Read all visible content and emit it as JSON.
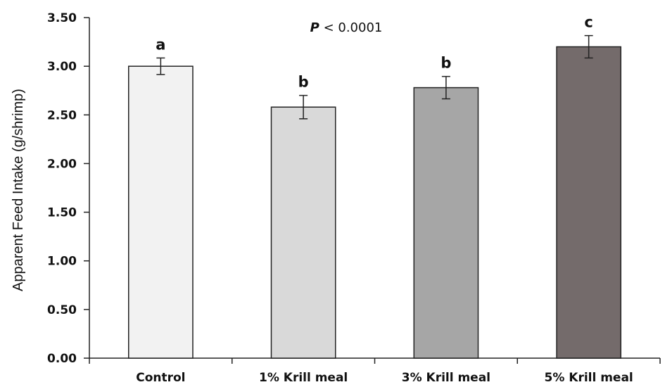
{
  "chart_data": {
    "type": "bar",
    "categories": [
      "Control",
      "1% Krill meal",
      "3% Krill meal",
      "5% Krill meal"
    ],
    "values": [
      3.0,
      2.58,
      2.78,
      3.2
    ],
    "errors": [
      0.085,
      0.12,
      0.115,
      0.115
    ],
    "significance_letters": [
      "a",
      "b",
      "b",
      "c"
    ],
    "bar_colors": [
      "#f2f2f2",
      "#d9d9d9",
      "#a6a6a6",
      "#746b6b"
    ],
    "ylabel": "Apparent Feed Intake (g/shrimp)",
    "xlabel": "",
    "ylim": [
      0,
      3.5
    ],
    "yticks": [
      "0.00",
      "0.50",
      "1.00",
      "1.50",
      "2.00",
      "2.50",
      "3.00",
      "3.50"
    ],
    "annotation": {
      "italic": "P",
      "rest": " < 0.0001"
    },
    "grid": false
  }
}
